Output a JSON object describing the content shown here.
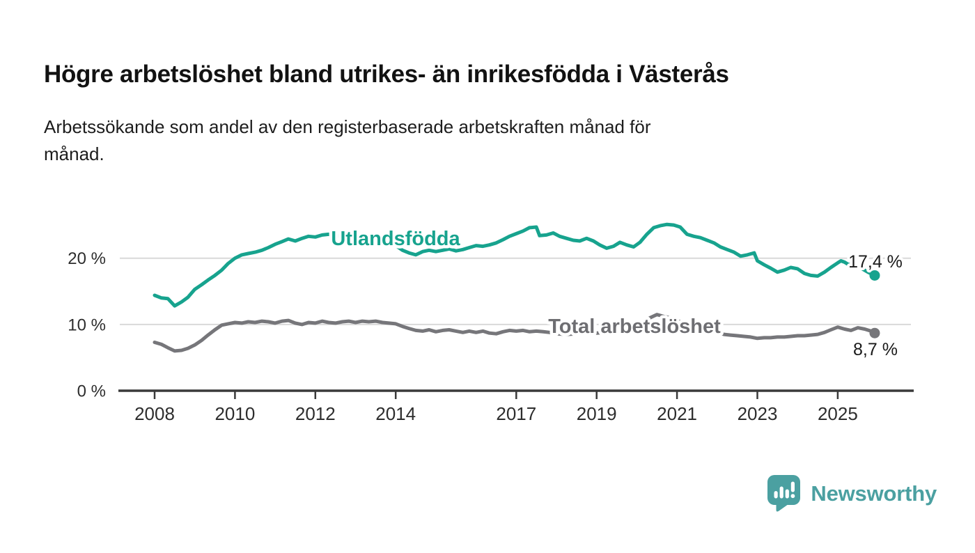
{
  "header": {
    "title": "Högre arbetslöshet bland utrikes- än inrikesfödda i Västerås",
    "subtitle_lines": [
      "Arbetssökande som andel av den registerbaserade arbetskraften månad för",
      "månad."
    ]
  },
  "chart_data": {
    "type": "line",
    "title": "Högre arbetslöshet bland utrikes- än inrikesfödda i Västerås",
    "subtitle": "Arbetssökande som andel av den registerbaserade arbetskraften månad för månad.",
    "unit": "%",
    "grid": "horizontal",
    "legend_position": "inline-labels",
    "x_axis": {
      "range": [
        2007.6,
        2026.2
      ],
      "ticks": [
        "2008",
        "2010",
        "2012",
        "2014",
        "2017",
        "2019",
        "2021",
        "2023",
        "2025"
      ],
      "tick_years": [
        2008,
        2010,
        2012,
        2014,
        2017,
        2019,
        2021,
        2023,
        2025
      ]
    },
    "y_axis": {
      "range": [
        0,
        27
      ],
      "ticks": [
        {
          "value": 0,
          "label": "0 %"
        },
        {
          "value": 10,
          "label": "10 %"
        },
        {
          "value": 20,
          "label": "20 %"
        }
      ]
    },
    "series": [
      {
        "name": "Utlandsfödda",
        "color": "#17a38e",
        "label_color": "#17a38e",
        "end_label": "17,4 %",
        "end_value": 17.4,
        "points": [
          [
            2008.0,
            14.4
          ],
          [
            2008.17,
            14.0
          ],
          [
            2008.33,
            13.9
          ],
          [
            2008.5,
            12.8
          ],
          [
            2008.67,
            13.4
          ],
          [
            2008.83,
            14.1
          ],
          [
            2009.0,
            15.3
          ],
          [
            2009.17,
            16.0
          ],
          [
            2009.33,
            16.7
          ],
          [
            2009.5,
            17.4
          ],
          [
            2009.67,
            18.2
          ],
          [
            2009.83,
            19.2
          ],
          [
            2010.0,
            20.0
          ],
          [
            2010.17,
            20.5
          ],
          [
            2010.33,
            20.7
          ],
          [
            2010.5,
            20.9
          ],
          [
            2010.67,
            21.2
          ],
          [
            2010.83,
            21.6
          ],
          [
            2011.0,
            22.1
          ],
          [
            2011.17,
            22.5
          ],
          [
            2011.33,
            22.9
          ],
          [
            2011.5,
            22.6
          ],
          [
            2011.67,
            23.0
          ],
          [
            2011.83,
            23.3
          ],
          [
            2012.0,
            23.2
          ],
          [
            2012.17,
            23.5
          ],
          [
            2012.33,
            23.6
          ],
          [
            2012.5,
            23.4
          ],
          [
            2012.67,
            23.3
          ],
          [
            2012.83,
            23.5
          ],
          [
            2013.0,
            23.4
          ],
          [
            2013.17,
            23.6
          ],
          [
            2013.33,
            23.5
          ],
          [
            2013.5,
            23.6
          ],
          [
            2013.67,
            23.4
          ],
          [
            2013.83,
            22.9
          ],
          [
            2014.0,
            21.9
          ],
          [
            2014.17,
            21.2
          ],
          [
            2014.33,
            20.8
          ],
          [
            2014.5,
            20.5
          ],
          [
            2014.67,
            21.0
          ],
          [
            2014.83,
            21.2
          ],
          [
            2015.0,
            21.0
          ],
          [
            2015.17,
            21.2
          ],
          [
            2015.33,
            21.4
          ],
          [
            2015.5,
            21.1
          ],
          [
            2015.67,
            21.3
          ],
          [
            2015.83,
            21.6
          ],
          [
            2016.0,
            21.9
          ],
          [
            2016.17,
            21.8
          ],
          [
            2016.33,
            22.0
          ],
          [
            2016.5,
            22.3
          ],
          [
            2016.67,
            22.8
          ],
          [
            2016.83,
            23.3
          ],
          [
            2017.0,
            23.7
          ],
          [
            2017.17,
            24.1
          ],
          [
            2017.33,
            24.6
          ],
          [
            2017.5,
            24.7
          ],
          [
            2017.58,
            23.4
          ],
          [
            2017.75,
            23.5
          ],
          [
            2017.92,
            23.8
          ],
          [
            2018.08,
            23.3
          ],
          [
            2018.25,
            23.0
          ],
          [
            2018.42,
            22.7
          ],
          [
            2018.58,
            22.6
          ],
          [
            2018.75,
            23.0
          ],
          [
            2018.92,
            22.6
          ],
          [
            2019.08,
            22.0
          ],
          [
            2019.25,
            21.5
          ],
          [
            2019.42,
            21.8
          ],
          [
            2019.58,
            22.4
          ],
          [
            2019.75,
            22.0
          ],
          [
            2019.92,
            21.7
          ],
          [
            2020.08,
            22.4
          ],
          [
            2020.25,
            23.6
          ],
          [
            2020.42,
            24.6
          ],
          [
            2020.58,
            24.9
          ],
          [
            2020.75,
            25.1
          ],
          [
            2020.92,
            25.0
          ],
          [
            2021.08,
            24.7
          ],
          [
            2021.25,
            23.6
          ],
          [
            2021.42,
            23.3
          ],
          [
            2021.58,
            23.1
          ],
          [
            2021.75,
            22.7
          ],
          [
            2021.92,
            22.3
          ],
          [
            2022.08,
            21.7
          ],
          [
            2022.25,
            21.3
          ],
          [
            2022.42,
            20.9
          ],
          [
            2022.58,
            20.3
          ],
          [
            2022.75,
            20.5
          ],
          [
            2022.92,
            20.8
          ],
          [
            2023.0,
            19.6
          ],
          [
            2023.17,
            19.0
          ],
          [
            2023.33,
            18.5
          ],
          [
            2023.5,
            17.9
          ],
          [
            2023.67,
            18.2
          ],
          [
            2023.83,
            18.6
          ],
          [
            2024.0,
            18.4
          ],
          [
            2024.17,
            17.7
          ],
          [
            2024.33,
            17.4
          ],
          [
            2024.5,
            17.3
          ],
          [
            2024.67,
            17.9
          ],
          [
            2024.83,
            18.6
          ],
          [
            2025.0,
            19.3
          ],
          [
            2025.08,
            19.6
          ],
          [
            2025.17,
            19.4
          ],
          [
            2025.25,
            19.1
          ],
          [
            2025.42,
            18.8
          ],
          [
            2025.58,
            18.5
          ],
          [
            2025.75,
            17.9
          ],
          [
            2025.92,
            17.4
          ]
        ]
      },
      {
        "name": "Total arbetslöshet",
        "color": "#76767a",
        "label_color": "#6e6e72",
        "end_label": "8,7 %",
        "end_value": 8.7,
        "points": [
          [
            2008.0,
            7.3
          ],
          [
            2008.17,
            7.0
          ],
          [
            2008.33,
            6.5
          ],
          [
            2008.5,
            6.0
          ],
          [
            2008.67,
            6.1
          ],
          [
            2008.83,
            6.4
          ],
          [
            2009.0,
            6.9
          ],
          [
            2009.17,
            7.6
          ],
          [
            2009.33,
            8.4
          ],
          [
            2009.5,
            9.2
          ],
          [
            2009.67,
            9.9
          ],
          [
            2009.83,
            10.1
          ],
          [
            2010.0,
            10.3
          ],
          [
            2010.17,
            10.2
          ],
          [
            2010.33,
            10.4
          ],
          [
            2010.5,
            10.3
          ],
          [
            2010.67,
            10.5
          ],
          [
            2010.83,
            10.4
          ],
          [
            2011.0,
            10.2
          ],
          [
            2011.17,
            10.5
          ],
          [
            2011.33,
            10.6
          ],
          [
            2011.5,
            10.2
          ],
          [
            2011.67,
            10.0
          ],
          [
            2011.83,
            10.3
          ],
          [
            2012.0,
            10.2
          ],
          [
            2012.17,
            10.5
          ],
          [
            2012.33,
            10.3
          ],
          [
            2012.5,
            10.2
          ],
          [
            2012.67,
            10.4
          ],
          [
            2012.83,
            10.5
          ],
          [
            2013.0,
            10.3
          ],
          [
            2013.17,
            10.5
          ],
          [
            2013.33,
            10.4
          ],
          [
            2013.5,
            10.5
          ],
          [
            2013.67,
            10.3
          ],
          [
            2013.83,
            10.2
          ],
          [
            2014.0,
            10.1
          ],
          [
            2014.17,
            9.7
          ],
          [
            2014.33,
            9.4
          ],
          [
            2014.5,
            9.1
          ],
          [
            2014.67,
            9.0
          ],
          [
            2014.83,
            9.2
          ],
          [
            2015.0,
            8.9
          ],
          [
            2015.17,
            9.1
          ],
          [
            2015.33,
            9.2
          ],
          [
            2015.5,
            9.0
          ],
          [
            2015.67,
            8.8
          ],
          [
            2015.83,
            9.0
          ],
          [
            2016.0,
            8.8
          ],
          [
            2016.17,
            9.0
          ],
          [
            2016.33,
            8.7
          ],
          [
            2016.5,
            8.6
          ],
          [
            2016.67,
            8.9
          ],
          [
            2016.83,
            9.1
          ],
          [
            2017.0,
            9.0
          ],
          [
            2017.17,
            9.1
          ],
          [
            2017.33,
            8.9
          ],
          [
            2017.5,
            9.0
          ],
          [
            2017.67,
            8.9
          ],
          [
            2017.83,
            8.8
          ],
          [
            2018.0,
            8.6
          ],
          [
            2018.25,
            8.5
          ],
          [
            2018.5,
            8.6
          ],
          [
            2018.75,
            8.7
          ],
          [
            2019.0,
            8.7
          ],
          [
            2019.25,
            8.8
          ],
          [
            2019.5,
            8.9
          ],
          [
            2019.75,
            9.1
          ],
          [
            2020.0,
            9.4
          ],
          [
            2020.17,
            10.3
          ],
          [
            2020.33,
            11.0
          ],
          [
            2020.5,
            11.5
          ],
          [
            2020.67,
            11.2
          ],
          [
            2020.83,
            11.0
          ],
          [
            2021.0,
            10.6
          ],
          [
            2021.17,
            10.2
          ],
          [
            2021.33,
            9.9
          ],
          [
            2021.5,
            9.6
          ],
          [
            2021.67,
            9.3
          ],
          [
            2021.83,
            9.0
          ],
          [
            2022.0,
            8.8
          ],
          [
            2022.17,
            8.5
          ],
          [
            2022.33,
            8.4
          ],
          [
            2022.5,
            8.3
          ],
          [
            2022.67,
            8.2
          ],
          [
            2022.83,
            8.1
          ],
          [
            2023.0,
            7.9
          ],
          [
            2023.17,
            8.0
          ],
          [
            2023.33,
            8.0
          ],
          [
            2023.5,
            8.1
          ],
          [
            2023.67,
            8.1
          ],
          [
            2023.83,
            8.2
          ],
          [
            2024.0,
            8.3
          ],
          [
            2024.17,
            8.3
          ],
          [
            2024.33,
            8.4
          ],
          [
            2024.5,
            8.5
          ],
          [
            2024.67,
            8.8
          ],
          [
            2024.83,
            9.2
          ],
          [
            2025.0,
            9.6
          ],
          [
            2025.17,
            9.3
          ],
          [
            2025.33,
            9.1
          ],
          [
            2025.5,
            9.5
          ],
          [
            2025.67,
            9.3
          ],
          [
            2025.83,
            9.0
          ],
          [
            2025.92,
            8.7
          ]
        ]
      }
    ]
  },
  "footer": {
    "brand": "Newsworthy",
    "logo_color": "#4ba0a1"
  },
  "colors": {
    "background": "#ffffff",
    "grid": "#d9d9d9",
    "axis": "#3a3a3a",
    "axis_text": "#2d2d2d",
    "value_label_text": "#1a1a1a"
  }
}
